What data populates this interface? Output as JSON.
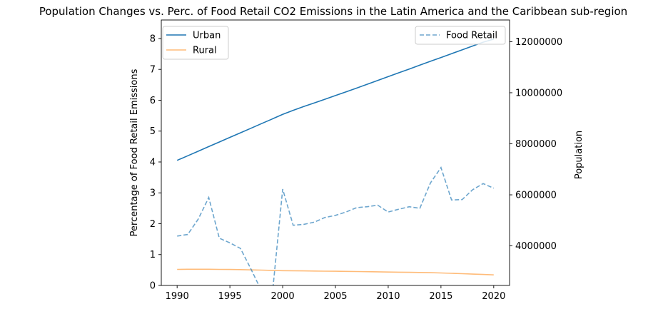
{
  "chart_data": {
    "type": "line",
    "title": "Population Changes vs. Perc. of Food Retail CO2 Emissions in the Latin America and the Caribbean sub-region",
    "xlabel": "",
    "ylabel": "Percentage of Food Retail Emissions",
    "y2label": "Population",
    "xlim": [
      1988.5,
      2021.5
    ],
    "ylim": [
      0,
      8.6
    ],
    "y2lim": [
      2450000,
      12850000
    ],
    "x_ticks": [
      1990,
      1995,
      2000,
      2005,
      2010,
      2015,
      2020
    ],
    "y_ticks": [
      0,
      1,
      2,
      3,
      4,
      5,
      6,
      7,
      8
    ],
    "y2_ticks": [
      4000000,
      6000000,
      8000000,
      10000000,
      12000000
    ],
    "x": [
      1990,
      1991,
      1992,
      1993,
      1994,
      1995,
      1996,
      1997,
      1998,
      1999,
      2000,
      2001,
      2002,
      2003,
      2004,
      2005,
      2006,
      2007,
      2008,
      2009,
      2010,
      2011,
      2012,
      2013,
      2014,
      2015,
      2016,
      2017,
      2018,
      2019,
      2020
    ],
    "series": [
      {
        "name": "Urban",
        "axis": "right",
        "color": "#1f77b4",
        "style": "solid",
        "values": [
          7350000,
          7530000,
          7710000,
          7890000,
          8070000,
          8250000,
          8430000,
          8610000,
          8790000,
          8970000,
          9150000,
          9310000,
          9460000,
          9600000,
          9745000,
          9890000,
          10035000,
          10180000,
          10330000,
          10480000,
          10630000,
          10780000,
          10930000,
          11080000,
          11230000,
          11380000,
          11530000,
          11680000,
          11830000,
          11980000,
          12100000
        ]
      },
      {
        "name": "Rural",
        "axis": "right",
        "color": "#ffbb78",
        "style": "solid",
        "values": [
          3080000,
          3085000,
          3085000,
          3085000,
          3080000,
          3075000,
          3070000,
          3060000,
          3050000,
          3040000,
          3030000,
          3025000,
          3020000,
          3015000,
          3010000,
          3005000,
          3000000,
          2995000,
          2990000,
          2985000,
          2975000,
          2970000,
          2965000,
          2960000,
          2950000,
          2940000,
          2925000,
          2910000,
          2895000,
          2880000,
          2865000
        ]
      },
      {
        "name": "Food Retail",
        "axis": "left",
        "color": "#1f77b4",
        "style": "dashed",
        "values": [
          1.6,
          1.65,
          2.15,
          2.85,
          1.53,
          1.38,
          1.2,
          0.53,
          -0.18,
          -0.35,
          3.12,
          1.95,
          1.98,
          2.05,
          2.2,
          2.27,
          2.38,
          2.52,
          2.55,
          2.6,
          2.38,
          2.47,
          2.55,
          2.5,
          3.32,
          3.82,
          2.77,
          2.78,
          3.1,
          3.3,
          3.15
        ]
      }
    ],
    "legend_left": [
      "Urban",
      "Rural"
    ],
    "legend_right": [
      "Food Retail"
    ]
  }
}
